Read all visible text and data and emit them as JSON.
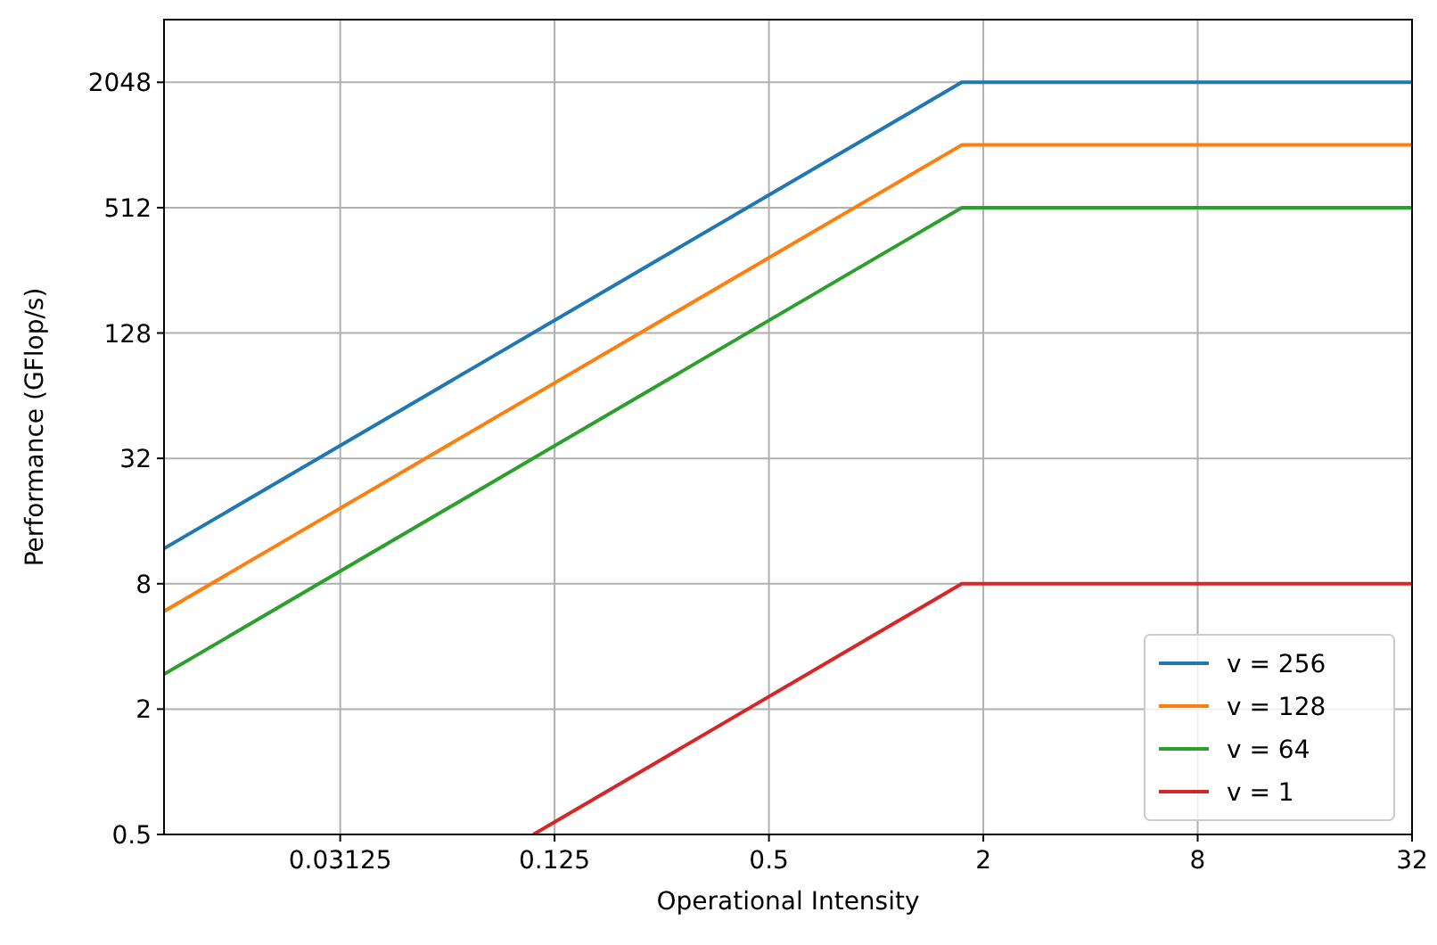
{
  "chart_data": {
    "type": "line",
    "xlabel": "Operational Intensity",
    "ylabel": "Performance (GFlop/s)",
    "log": "xy",
    "xlim": [
      0.01,
      32
    ],
    "ylim": [
      0.5,
      4096
    ],
    "xticks": [
      0.03125,
      0.125,
      0.5,
      2,
      8,
      32
    ],
    "yticks": [
      0.5,
      2,
      8,
      32,
      128,
      512,
      2048
    ],
    "grid": true,
    "legend": "bottom right",
    "line_style": "solid",
    "series": [
      {
        "name": "v = 256",
        "color": "#1f77b4",
        "x": [
          0.01,
          1.74,
          32
        ],
        "values": [
          11.8,
          2048,
          2048
        ]
      },
      {
        "name": "v = 128",
        "color": "#ff7f0e",
        "x": [
          0.01,
          1.74,
          32
        ],
        "values": [
          5.9,
          1024,
          1024
        ]
      },
      {
        "name": "v = 64",
        "color": "#2ca02c",
        "x": [
          0.01,
          1.74,
          32
        ],
        "values": [
          2.94,
          512,
          512
        ]
      },
      {
        "name": "v = 1",
        "color": "#d62728",
        "x": [
          0.109,
          1.74,
          32
        ],
        "values": [
          0.5,
          8,
          8
        ]
      }
    ]
  }
}
